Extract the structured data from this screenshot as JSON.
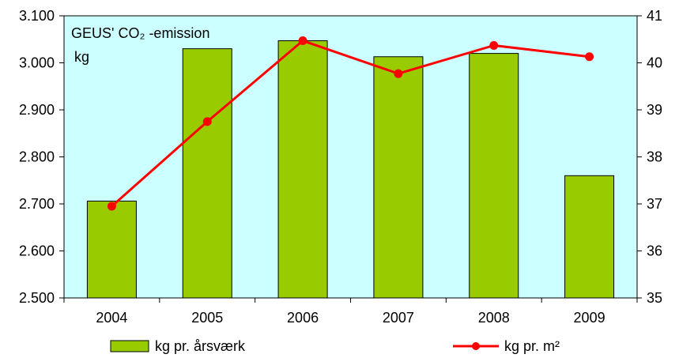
{
  "chart_data": {
    "type": "bar",
    "title": "GEUS' CO₂ -emission",
    "unit_label": "kg",
    "categories": [
      "2004",
      "2005",
      "2006",
      "2007",
      "2008",
      "2009"
    ],
    "y_left": {
      "ticks": [
        "2.500",
        "2.600",
        "2.700",
        "2.800",
        "2.900",
        "3.000",
        "3.100"
      ],
      "ylim": [
        2500,
        3100
      ]
    },
    "y_right": {
      "ticks": [
        "35",
        "36",
        "37",
        "38",
        "39",
        "40",
        "41"
      ],
      "ylim": [
        35,
        41
      ]
    },
    "grid": false,
    "legend_position": "bottom",
    "series": [
      {
        "name": "kg pr. årsværk",
        "type": "bar",
        "axis": "left",
        "color": "#99cc00",
        "values": [
          2706,
          3030,
          3047,
          3013,
          3020,
          2760
        ]
      },
      {
        "name": "kg pr. m²",
        "type": "line",
        "axis": "right",
        "color": "#ff0000",
        "values": [
          36.95,
          38.75,
          40.47,
          39.77,
          40.37,
          40.13
        ]
      }
    ],
    "plot_background": "#ccffff"
  }
}
